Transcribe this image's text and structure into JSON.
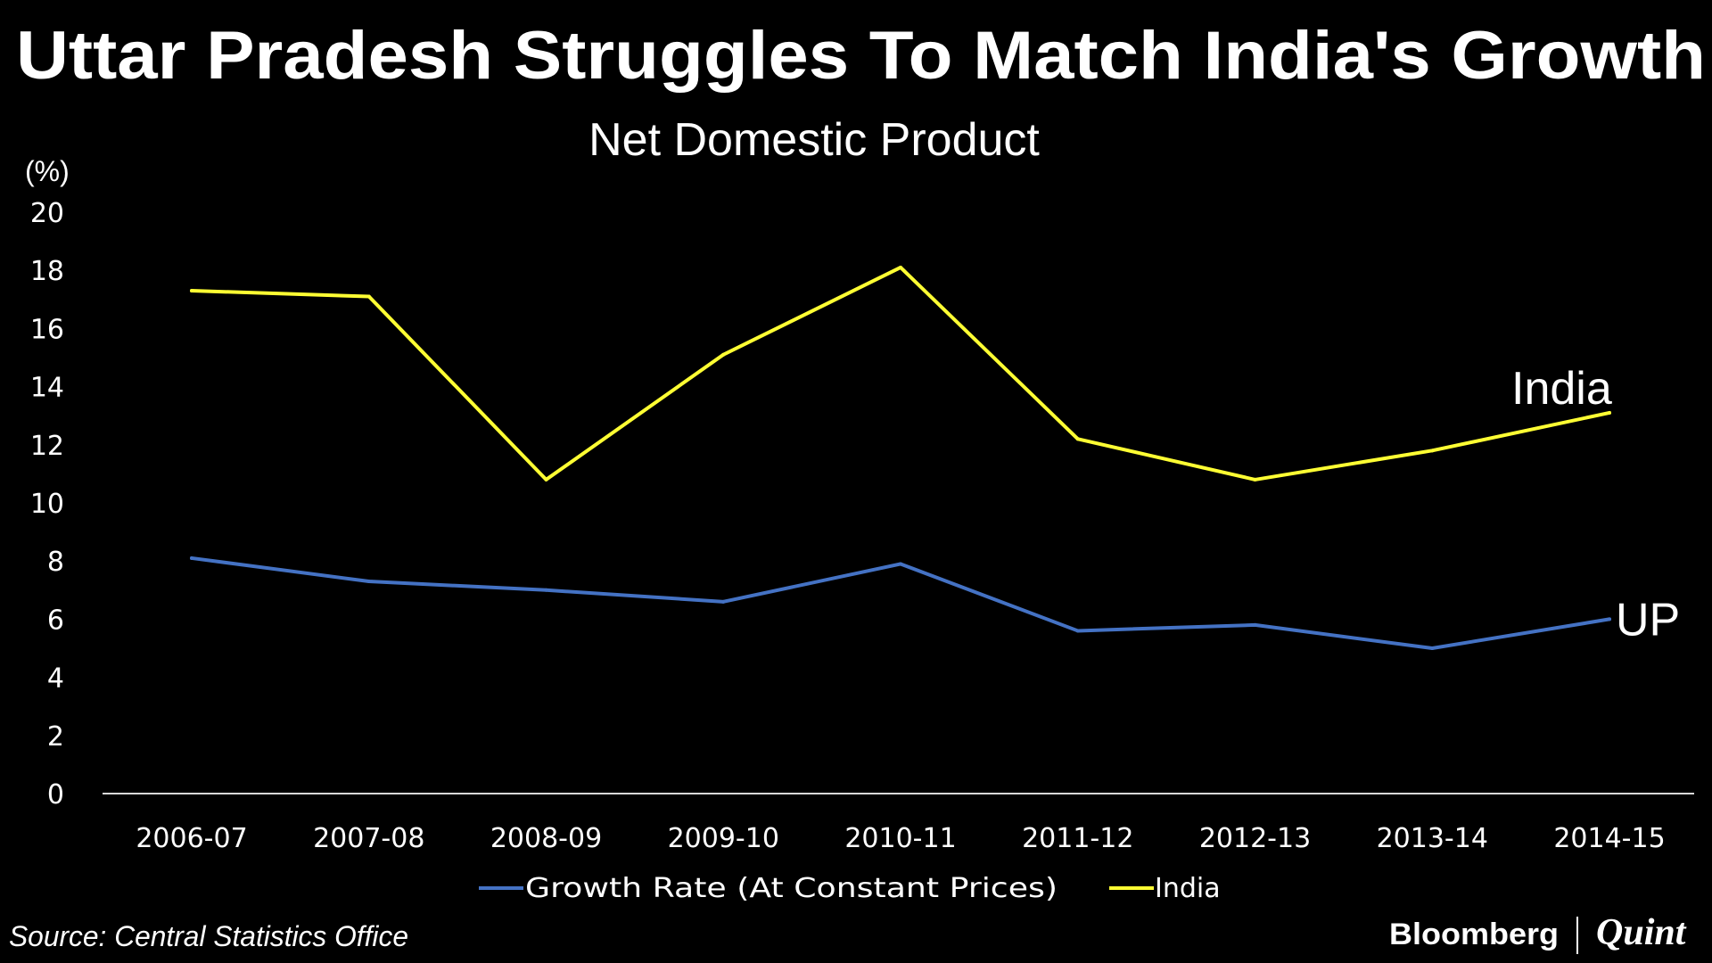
{
  "title": "Uttar Pradesh Struggles To Match India's Growth",
  "source": "Source: Central Statistics Office",
  "branding": {
    "left": "Bloomberg",
    "right": "Quint"
  },
  "colors": {
    "background": "#000000",
    "text": "#ffffff",
    "india": "#ffff33",
    "up": "#4472c4",
    "axis": "#d9d9d9"
  },
  "chart_data": {
    "type": "line",
    "title": "Net Domestic Product",
    "ylabel": "(%)",
    "xlabel": "",
    "ylim": [
      0,
      20
    ],
    "yticks": [
      0,
      2,
      4,
      6,
      8,
      10,
      12,
      14,
      16,
      18,
      20
    ],
    "categories": [
      "2006-07",
      "2007-08",
      "2008-09",
      "2009-10",
      "2010-11",
      "2011-12",
      "2012-13",
      "2013-14",
      "2014-15"
    ],
    "series": [
      {
        "name": "Growth Rate (At Constant Prices)",
        "label": "UP",
        "color": "#4472c4",
        "values": [
          8.1,
          7.3,
          7.0,
          6.6,
          7.9,
          5.6,
          5.8,
          5.0,
          6.0
        ]
      },
      {
        "name": "India",
        "label": "India",
        "color": "#ffff33",
        "values": [
          17.3,
          17.1,
          10.8,
          15.1,
          18.1,
          12.2,
          10.8,
          11.8,
          13.1
        ]
      }
    ]
  }
}
